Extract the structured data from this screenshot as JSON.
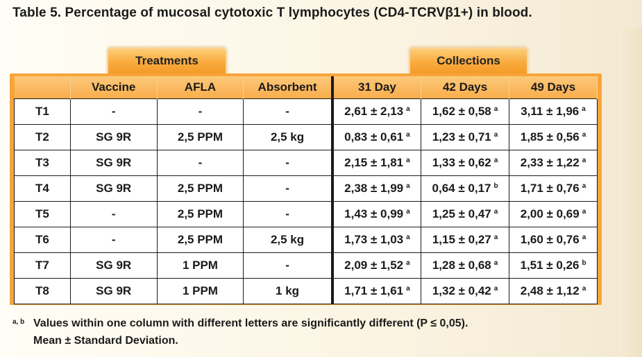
{
  "title": "Table 5. Percentage of mucosal cytotoxic T lymphocytes (CD4-TCRVβ1+) in blood.",
  "groups": {
    "treatments": "Treatments",
    "collections": "Collections"
  },
  "columns": [
    "",
    "Vaccine",
    "AFLA",
    "Absorbent",
    "31 Day",
    "42 Days",
    "49 Days"
  ],
  "rows": [
    {
      "id": "T1",
      "vaccine": "-",
      "afla": "-",
      "absorbent": "-",
      "d31": "2,61 ± 2,13",
      "d31_sup": "a",
      "d42": "1,62 ± 0,58",
      "d42_sup": "a",
      "d49": "3,11 ± 1,96",
      "d49_sup": "a"
    },
    {
      "id": "T2",
      "vaccine": "SG 9R",
      "afla": "2,5 PPM",
      "absorbent": "2,5 kg",
      "d31": "0,83 ± 0,61",
      "d31_sup": "a",
      "d42": "1,23 ± 0,71",
      "d42_sup": "a",
      "d49": "1,85 ± 0,56",
      "d49_sup": "a"
    },
    {
      "id": "T3",
      "vaccine": "SG 9R",
      "afla": "-",
      "absorbent": "-",
      "d31": "2,15 ± 1,81",
      "d31_sup": "a",
      "d42": "1,33 ± 0,62",
      "d42_sup": "a",
      "d49": "2,33 ± 1,22",
      "d49_sup": "a"
    },
    {
      "id": "T4",
      "vaccine": "SG 9R",
      "afla": "2,5 PPM",
      "absorbent": "-",
      "d31": "2,38 ± 1,99",
      "d31_sup": "a",
      "d42": "0,64 ± 0,17",
      "d42_sup": "b",
      "d49": "1,71 ± 0,76",
      "d49_sup": "a"
    },
    {
      "id": "T5",
      "vaccine": "-",
      "afla": "2,5 PPM",
      "absorbent": "-",
      "d31": "1,43 ± 0,99",
      "d31_sup": "a",
      "d42": "1,25 ± 0,47",
      "d42_sup": "a",
      "d49": "2,00 ± 0,69",
      "d49_sup": "a"
    },
    {
      "id": "T6",
      "vaccine": "-",
      "afla": "2,5 PPM",
      "absorbent": "2,5 kg",
      "d31": "1,73 ± 1,03",
      "d31_sup": "a",
      "d42": "1,15 ± 0,27",
      "d42_sup": "a",
      "d49": "1,60 ± 0,76",
      "d49_sup": "a"
    },
    {
      "id": "T7",
      "vaccine": "SG 9R",
      "afla": "1 PPM",
      "absorbent": "-",
      "d31": "2,09 ± 1,52",
      "d31_sup": "a",
      "d42": "1,28 ± 0,68",
      "d42_sup": "a",
      "d49": "1,51 ± 0,26",
      "d49_sup": "b"
    },
    {
      "id": "T8",
      "vaccine": "SG 9R",
      "afla": "1 PPM",
      "absorbent": "1 kg",
      "d31": "1,71 ± 1,61",
      "d31_sup": "a",
      "d42": "1,32 ± 0,42",
      "d42_sup": "a",
      "d49": "2,48 ± 1,12",
      "d49_sup": "a"
    }
  ],
  "footnote": {
    "mark": "a, b",
    "line1": "Values within one column with different letters are significantly different (P ≤ 0,05).",
    "line2": "Mean ± Standard Deviation."
  },
  "colors": {
    "orange": "#f7a43a",
    "header": "#fcc97a",
    "border": "#1a1a1a"
  }
}
